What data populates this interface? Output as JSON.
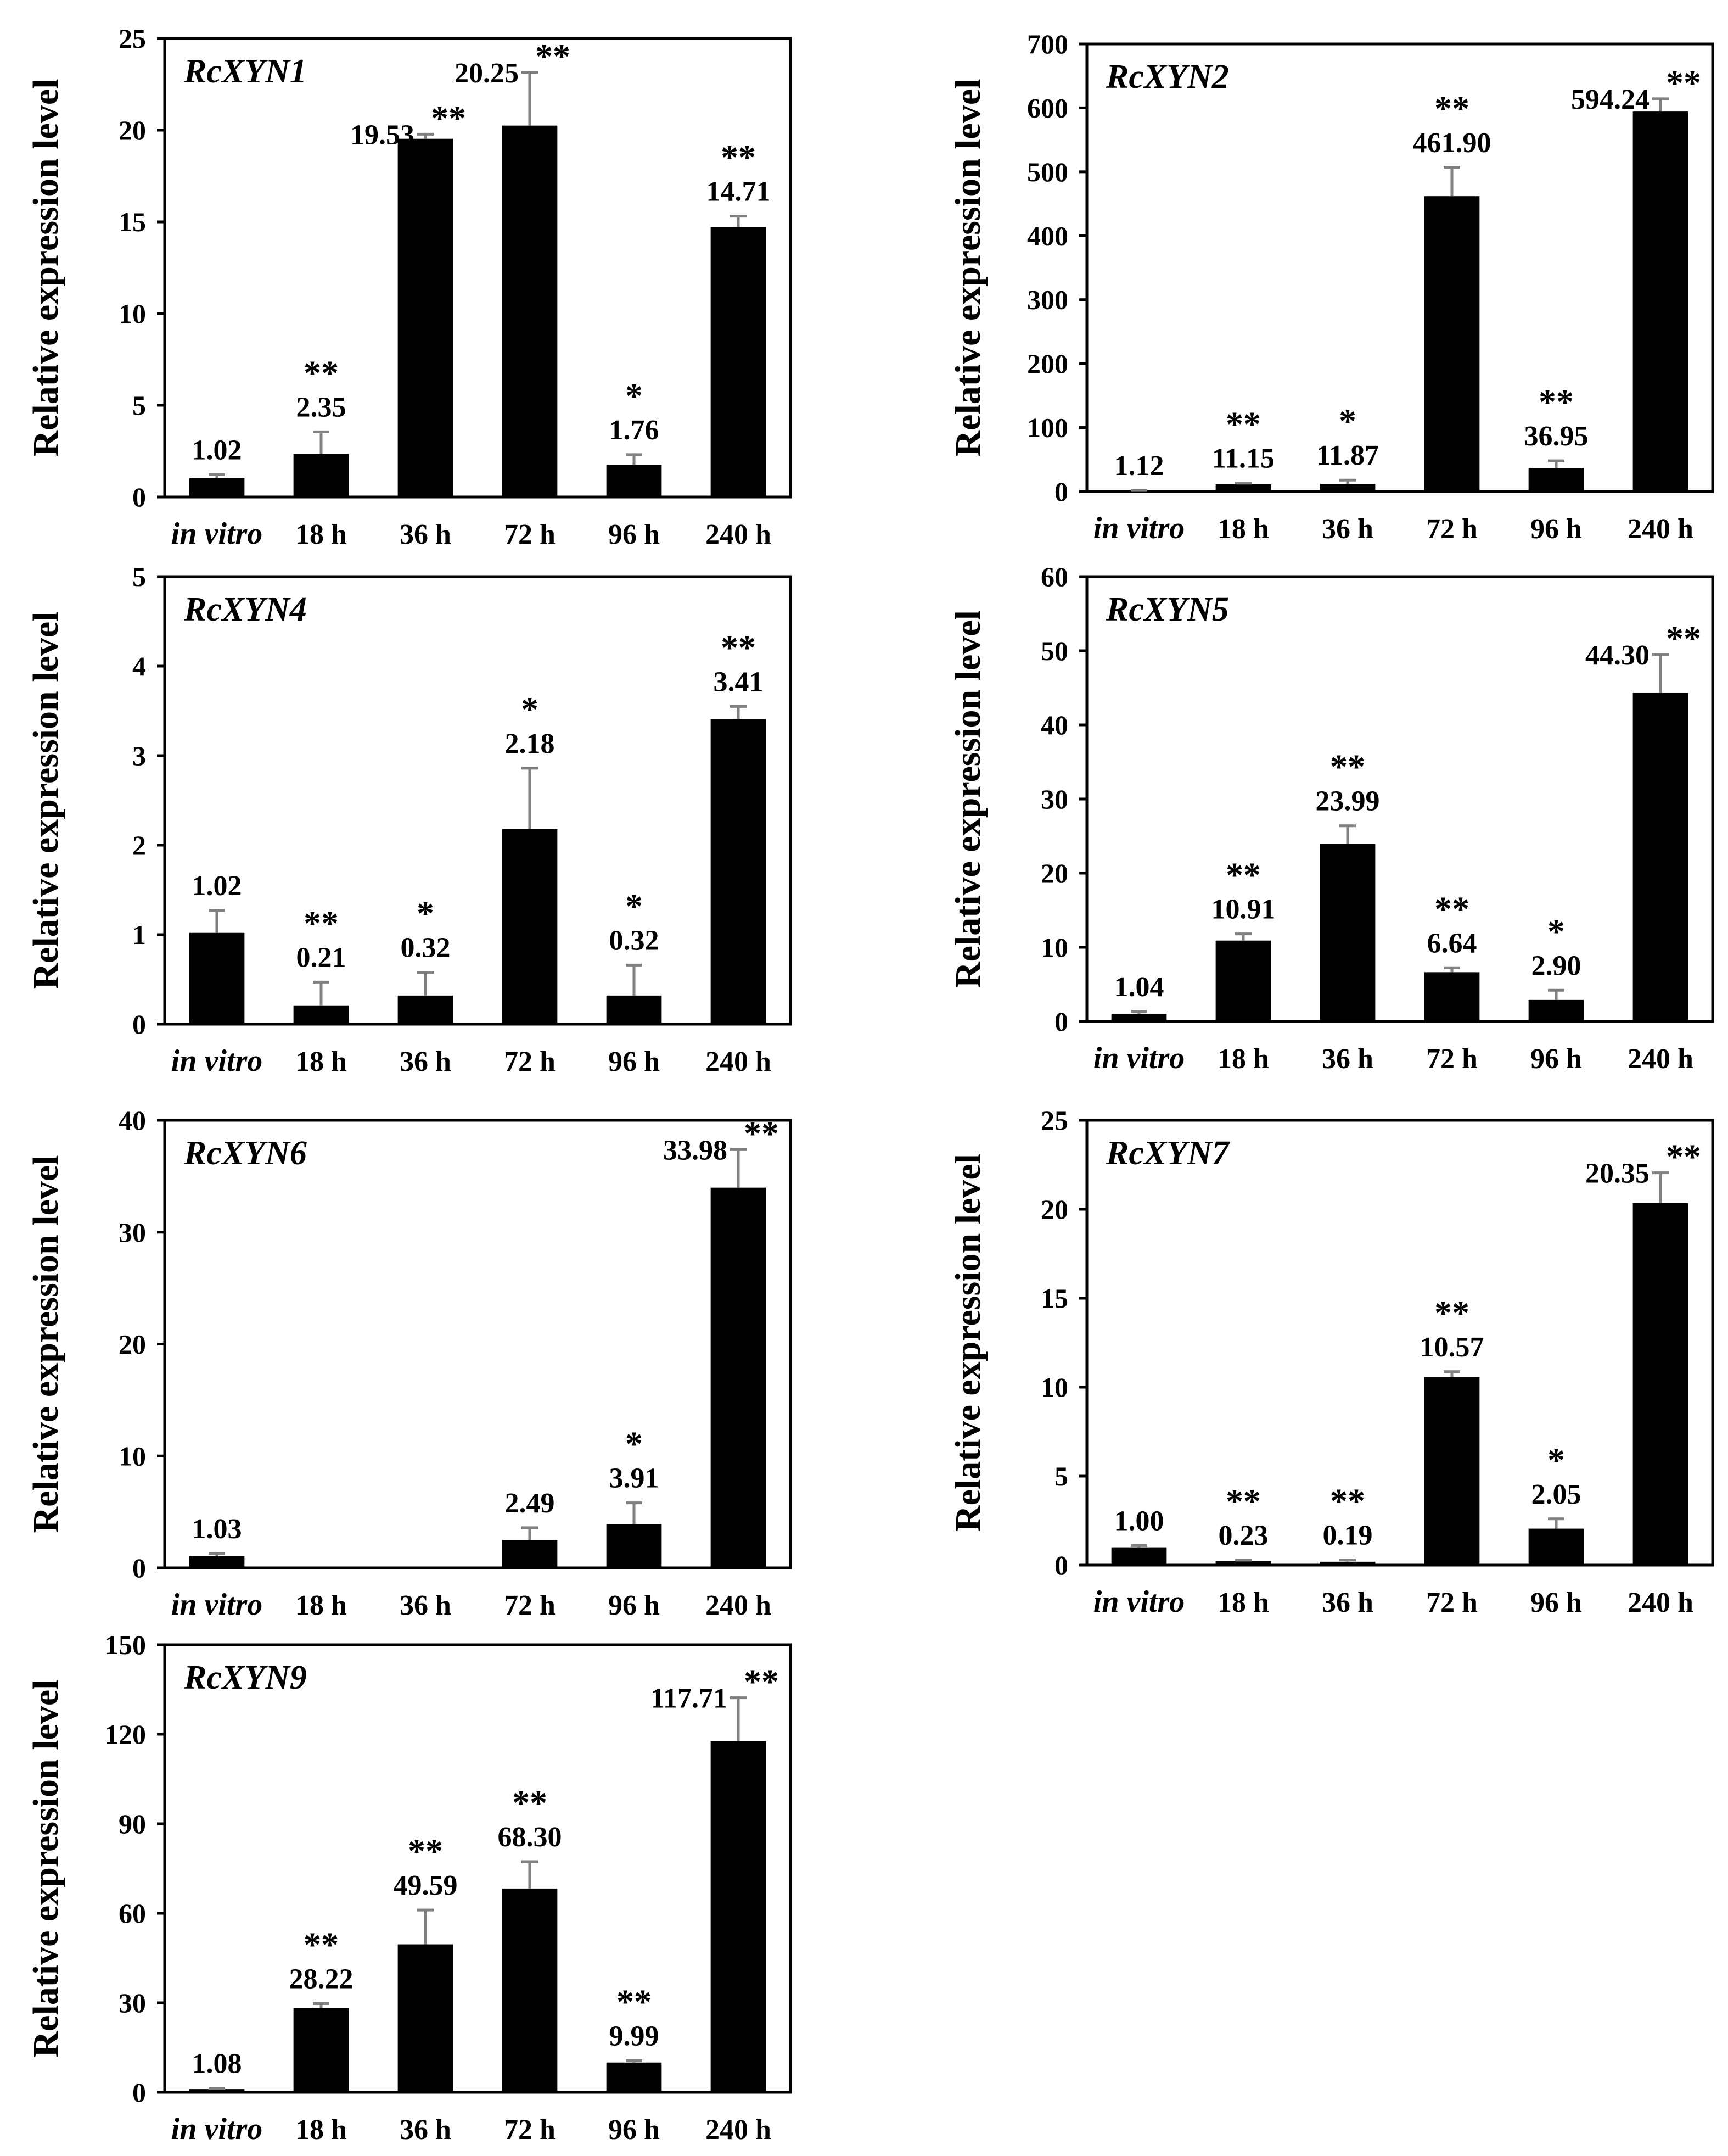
{
  "colors": {
    "bar": "#000000",
    "error_bar": "#808080",
    "axis": "#000000",
    "background": "#ffffff"
  },
  "chart_data": [
    {
      "type": "bar",
      "title": "RcXYN1",
      "ylabel": "Relative expression level",
      "categories": [
        "in vitro",
        "18 h",
        "36 h",
        "72 h",
        "96 h",
        "240 h"
      ],
      "values": [
        1.02,
        2.35,
        19.53,
        20.25,
        1.76,
        14.71
      ],
      "errors": [
        0.2,
        1.2,
        0.25,
        2.9,
        0.55,
        0.6
      ],
      "value_labels": [
        "1.02",
        "2.35",
        "19.53",
        "20.25",
        "1.76",
        "14.71"
      ],
      "significance": [
        "",
        "**",
        "**",
        "**",
        "*",
        "**"
      ],
      "yticks": [
        "0",
        "5",
        "10",
        "15",
        "20",
        "25"
      ],
      "ylim": [
        0,
        25
      ]
    },
    {
      "type": "bar",
      "title": "RcXYN2",
      "ylabel": "Relative expression level",
      "categories": [
        "in vitro",
        "18 h",
        "36 h",
        "72 h",
        "96 h",
        "240 h"
      ],
      "values": [
        1.12,
        11.15,
        11.87,
        461.9,
        36.95,
        594.24
      ],
      "errors": [
        0.5,
        2,
        6,
        45,
        11,
        20
      ],
      "value_labels": [
        "1.12",
        "11.15",
        "11.87",
        "461.90",
        "36.95",
        "594.24"
      ],
      "significance": [
        "",
        "**",
        "*",
        "**",
        "**",
        "**"
      ],
      "yticks": [
        "0",
        "100",
        "200",
        "300",
        "400",
        "500",
        "600",
        "700"
      ],
      "ylim": [
        0,
        700
      ]
    },
    {
      "type": "bar",
      "title": "RcXYN4",
      "ylabel": "Relative expression level",
      "categories": [
        "in vitro",
        "18 h",
        "36 h",
        "72 h",
        "96 h",
        "240 h"
      ],
      "values": [
        1.02,
        0.21,
        0.32,
        2.18,
        0.32,
        3.41
      ],
      "errors": [
        0.25,
        0.26,
        0.26,
        0.68,
        0.34,
        0.14
      ],
      "value_labels": [
        "1.02",
        "0.21",
        "0.32",
        "2.18",
        "0.32",
        "3.41"
      ],
      "significance": [
        "",
        "**",
        "*",
        "*",
        "*",
        "**"
      ],
      "yticks": [
        "0",
        "1",
        "2",
        "3",
        "4",
        "5"
      ],
      "ylim": [
        0,
        5
      ]
    },
    {
      "type": "bar",
      "title": "RcXYN5",
      "ylabel": "Relative expression level",
      "categories": [
        "in vitro",
        "18 h",
        "36 h",
        "72 h",
        "96 h",
        "240 h"
      ],
      "values": [
        1.04,
        10.91,
        23.99,
        6.64,
        2.9,
        44.3
      ],
      "errors": [
        0.3,
        0.9,
        2.4,
        0.6,
        1.3,
        5.2
      ],
      "value_labels": [
        "1.04",
        "10.91",
        "23.99",
        "6.64",
        "2.90",
        "44.30"
      ],
      "significance": [
        "",
        "**",
        "**",
        "**",
        "*",
        "**"
      ],
      "yticks": [
        "0",
        "10",
        "20",
        "30",
        "40",
        "50",
        "60"
      ],
      "ylim": [
        0,
        60
      ]
    },
    {
      "type": "bar",
      "title": "RcXYN6",
      "ylabel": "Relative expression level",
      "categories": [
        "in vitro",
        "18 h",
        "36 h",
        "72 h",
        "96 h",
        "240 h"
      ],
      "values": [
        1.03,
        0,
        0,
        2.49,
        3.91,
        33.98
      ],
      "errors": [
        0.25,
        0,
        0,
        1.1,
        1.9,
        3.4
      ],
      "value_labels": [
        "1.03",
        "",
        "",
        "2.49",
        "3.91",
        "33.98"
      ],
      "significance": [
        "",
        "",
        "",
        "",
        "*",
        "**"
      ],
      "yticks": [
        "0",
        "10",
        "20",
        "30",
        "40"
      ],
      "ylim": [
        0,
        40
      ]
    },
    {
      "type": "bar",
      "title": "RcXYN7",
      "ylabel": "Relative expression level",
      "categories": [
        "in vitro",
        "18 h",
        "36 h",
        "72 h",
        "96 h",
        "240 h"
      ],
      "values": [
        1.0,
        0.23,
        0.19,
        10.57,
        2.05,
        20.35
      ],
      "errors": [
        0.1,
        0.05,
        0.1,
        0.3,
        0.55,
        1.7
      ],
      "value_labels": [
        "1.00",
        "0.23",
        "0.19",
        "10.57",
        "2.05",
        "20.35"
      ],
      "significance": [
        "",
        "**",
        "**",
        "**",
        "*",
        "**"
      ],
      "yticks": [
        "0",
        "5",
        "10",
        "15",
        "20",
        "25"
      ],
      "ylim": [
        0,
        25
      ]
    },
    {
      "type": "bar",
      "title": "RcXYN9",
      "ylabel": "Relative expression level",
      "categories": [
        "in vitro",
        "18 h",
        "36 h",
        "72 h",
        "96 h",
        "240 h"
      ],
      "values": [
        1.08,
        28.22,
        49.59,
        68.3,
        9.99,
        117.71
      ],
      "errors": [
        0.3,
        1.5,
        11.5,
        9.0,
        0.6,
        14.5
      ],
      "value_labels": [
        "1.08",
        "28.22",
        "49.59",
        "68.30",
        "9.99",
        "117.71"
      ],
      "significance": [
        "",
        "**",
        "**",
        "**",
        "**",
        "**"
      ],
      "yticks": [
        "0",
        "30",
        "60",
        "90",
        "120",
        "150"
      ],
      "ylim": [
        0,
        150
      ]
    }
  ]
}
